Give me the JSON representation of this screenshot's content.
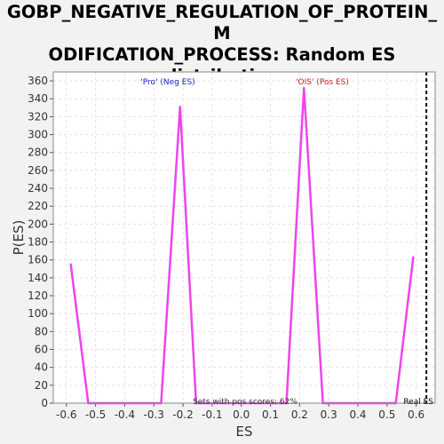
{
  "chart_data": {
    "type": "line",
    "title_lines": [
      "GOBP_NEGATIVE_REGULATION_OF_PROTEIN_M",
      "ODIFICATION_PROCESS: Random ES",
      "distribution"
    ],
    "xlabel": "ES",
    "ylabel": "P(ES)",
    "xlim": [
      -0.645,
      0.665
    ],
    "ylim": [
      0,
      370
    ],
    "xticks": [
      -0.6,
      -0.5,
      -0.4,
      -0.3,
      -0.2,
      -0.1,
      0.0,
      0.1,
      0.2,
      0.3,
      0.4,
      0.5,
      0.6
    ],
    "xtick_labels": [
      "-0.6",
      "-0.5",
      "-0.4",
      "-0.3",
      "-0.2",
      "-0.1",
      "0.0",
      "0.1",
      "0.2",
      "0.3",
      "0.4",
      "0.5",
      "0.6"
    ],
    "yticks": [
      0,
      20,
      40,
      60,
      80,
      100,
      120,
      140,
      160,
      180,
      200,
      220,
      240,
      260,
      280,
      300,
      320,
      340,
      360
    ],
    "grid": true,
    "series": [
      {
        "color": "#ee44ee",
        "x": [
          -0.585,
          -0.525,
          -0.275,
          -0.21,
          -0.155,
          0.155,
          0.215,
          0.28,
          0.53,
          0.59
        ],
        "y": [
          155,
          0,
          0,
          331,
          0,
          0,
          352,
          0,
          0,
          163
        ]
      }
    ],
    "real_es": 0.635,
    "annotations": {
      "neg": "'Pro' (Neg ES)",
      "pos": "'OIS' (Pos ES)",
      "sets_pos": "Sets with pos scores: 62%",
      "real_es": "Real ES"
    },
    "colors": {
      "neg": "#1a1ad0",
      "pos": "#d01a1a",
      "line": "#ee44ee"
    }
  }
}
